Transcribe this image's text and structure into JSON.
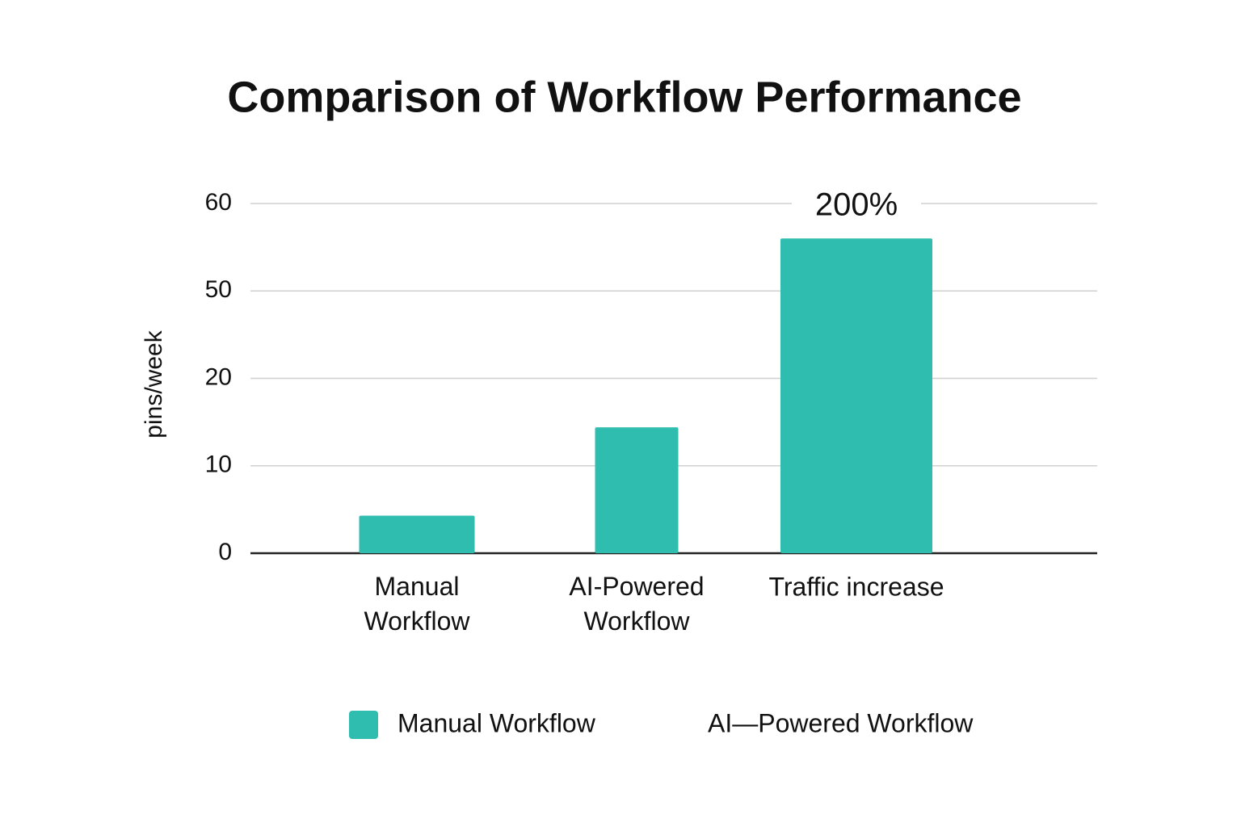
{
  "chart_data": {
    "type": "bar",
    "title": "Comparison of Workflow Performance",
    "y_label": "pins/week",
    "categories": [
      "Manual\nWorkflow",
      "AI-Powered\nWorkflow",
      "Traffic increase"
    ],
    "values": [
      4.3,
      14.4,
      56
    ],
    "color": "#2ebdae",
    "ylim": [
      0,
      60
    ],
    "yticks": [
      0,
      10,
      20,
      50,
      60
    ],
    "grid": true,
    "annotation": "200%",
    "legend": [
      {
        "name": "Manual Workflow",
        "color": "#2ebdae"
      },
      {
        "name": "AI—Powered Workflow"
      }
    ]
  }
}
